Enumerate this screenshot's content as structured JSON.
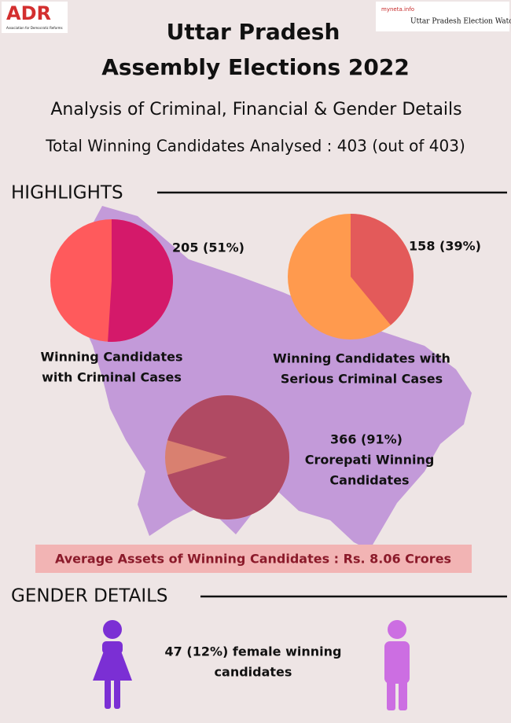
{
  "header": {
    "logo_left": "ADR",
    "logo_left_sub": "Association for Democratic Reforms",
    "logo_right_small": "myneta.info",
    "logo_right": "Uttar Pradesh Election Watch",
    "title_lines": [
      "Uttar Pradesh",
      "Assembly Elections 2022"
    ],
    "subtitle": "Analysis of Criminal, Financial & Gender Details",
    "total": "Total Winning Candidates Analysed : 403 (out of 403)"
  },
  "highlights": {
    "heading": "HIGHLIGHTS",
    "items": [
      {
        "percent": 51,
        "value_label": "205 (51%)",
        "caption": [
          "Winning Candidates",
          "with Criminal Cases"
        ]
      },
      {
        "percent": 39,
        "value_label": "158 (39%)",
        "caption": [
          "Winning Candidates with",
          "Serious Criminal Cases"
        ]
      },
      {
        "percent": 91,
        "value_label": "366 (91%)",
        "caption": [
          "Crorepati Winning",
          "Candidates"
        ]
      }
    ],
    "assets": "Average Assets of Winning Candidates : Rs. 8.06 Crores"
  },
  "gender": {
    "heading": "GENDER DETAILS",
    "text": [
      "47 (12%) female winning",
      "candidates"
    ]
  }
}
